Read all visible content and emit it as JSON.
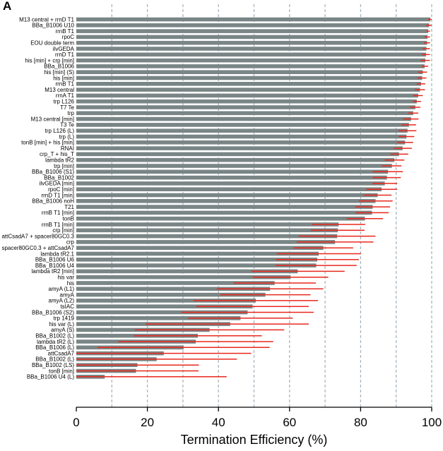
{
  "panel_label": "A",
  "colors": {
    "bar": "#7a8585",
    "error": "#e8281e",
    "grid": "#a7b5bf",
    "axis": "#000000"
  },
  "chart_data": {
    "type": "bar",
    "orientation": "horizontal",
    "xlabel": "Termination Efficiency (%)",
    "ylabel": "",
    "xlim": [
      0,
      100
    ],
    "xticks": [
      "0",
      "20",
      "40",
      "60",
      "80",
      "100"
    ],
    "grid": "dashed vertical lines every 10",
    "categories": [
      "M13 central + rrnD T1",
      "BBa_B1006 U10",
      "rrnB T1",
      "rpoC",
      "EOU double term",
      "ilvGEDA",
      "rrnD T1",
      "his [min] + crp [min]",
      "BBa_B1006",
      "his [min] (S)",
      "his [min]",
      "rrnB T1",
      "M13 central",
      "rrnA T1",
      "trp L126",
      "T7 Te",
      "trp",
      "M13 central [min]",
      "T3 Te",
      "trp L126 (L)",
      "trp (L)",
      "tonB [min] + his [min]",
      "RNAI",
      "crp_T + his_T",
      "lambda tR2",
      "trp [min]",
      "BBa_B1006 (S1)",
      "BBa_B1002",
      "ilvGEDA [min]",
      "rpoC [min]",
      "rrnD T1 [min]",
      "BBa_B1006 noH",
      "T21",
      "rrnB T1 [min]",
      "tonB",
      "rrnB T1 [min]",
      "crp [min]",
      "attCsadA7 + spacer80GC0.3",
      "crp",
      "spacer80GC0.3 + attCsadA7",
      "lambda tR2.1",
      "BBa_B1006 U6",
      "BBa_B1006 U4",
      "lambda tR2 [min]",
      "his var",
      "his",
      "amyA (L1)",
      "amyA",
      "amyA (L2)",
      "tsIAC",
      "BBa_B1006 (S2)",
      "trp 1419",
      "his var (L)",
      "amyA (S)",
      "BBa_B1002 (L)",
      "lambda tR2 (L)",
      "BBa_B1006 (L)",
      "attCsadA7",
      "BBa_B1002 (L)",
      "BBa_B1002 (LS)",
      "tonB [min]",
      "BBa_B1006 U4 (L)"
    ],
    "values": [
      99.6,
      99.3,
      99,
      98.8,
      98.7,
      98.5,
      98.4,
      98.2,
      98,
      97.5,
      97.3,
      97,
      96.7,
      96.2,
      95.8,
      95.4,
      94.8,
      94.2,
      93.6,
      93.2,
      92.9,
      92.5,
      91.8,
      90.8,
      89.5,
      88.8,
      87.7,
      87.4,
      86.8,
      85.9,
      84.8,
      84.2,
      83.4,
      83.2,
      81.2,
      73.8,
      73.6,
      73.4,
      72.8,
      69.5,
      68.2,
      67.8,
      67.5,
      62.3,
      60.3,
      55.8,
      54.5,
      53.2,
      50.5,
      49.6,
      48.2,
      46.2,
      43.3,
      37.5,
      34.2,
      33.6,
      30.2,
      24.6,
      22.6,
      17.2,
      16.8,
      8
    ],
    "error_low": [
      99,
      98.4,
      98.5,
      98,
      97.8,
      97.5,
      97.2,
      96.9,
      97.2,
      96.2,
      96,
      95.8,
      95.3,
      94.8,
      94.7,
      93.9,
      93.4,
      92,
      91.5,
      90.7,
      90.7,
      90.2,
      89.4,
      88.4,
      86.8,
      86,
      83.4,
      83.4,
      83.3,
      81.6,
      80.9,
      79.5,
      78.5,
      78.5,
      76.1,
      66.3,
      66,
      62.6,
      62,
      61.2,
      56.4,
      56.1,
      56.1,
      49.2,
      49.6,
      44.2,
      39.5,
      40.5,
      33,
      33.8,
      29.5,
      31.5,
      19.5,
      16.5,
      16.2,
      11.8,
      6,
      0,
      0,
      0,
      0,
      0
    ],
    "error_high": [
      100,
      100,
      99.5,
      99.5,
      99.5,
      99.5,
      99.5,
      99.5,
      99,
      98.7,
      98.5,
      98.2,
      98.1,
      97.5,
      97,
      96.8,
      96.2,
      96.3,
      95.6,
      95.7,
      95.1,
      94.8,
      94.4,
      93.4,
      92.3,
      91.5,
      91.9,
      91.3,
      90.3,
      90.3,
      88.7,
      89,
      88.3,
      87.9,
      86.3,
      81.3,
      81.1,
      84.2,
      83.6,
      77.9,
      80.1,
      79.5,
      78.9,
      75.5,
      70.9,
      67.4,
      69.5,
      65.9,
      68,
      65.4,
      66.8,
      60.9,
      65.4,
      58.5,
      52.2,
      55.4,
      54.4,
      49.2,
      45.2,
      34.5,
      34.4,
      42.3
    ]
  }
}
